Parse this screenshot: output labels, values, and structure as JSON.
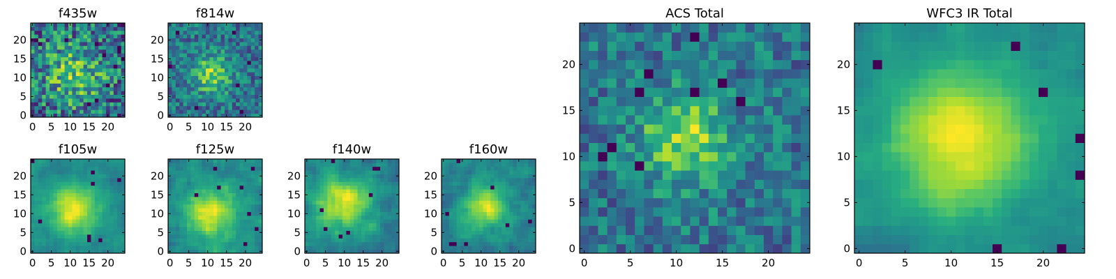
{
  "figure": {
    "background": "#ffffff"
  },
  "chart_data": [
    {
      "type": "heatmap",
      "title": "f435w",
      "xticks": [
        "0",
        "5",
        "10",
        "15",
        "20"
      ],
      "yticks": [
        "0",
        "5",
        "10",
        "15",
        "20"
      ],
      "xlim": [
        0,
        25
      ],
      "ylim": [
        0,
        25
      ],
      "colormap": "viridis",
      "pattern": "noisy",
      "seed": 11,
      "center": [
        11,
        11
      ],
      "sigma": 7,
      "noise": 0.55
    },
    {
      "type": "heatmap",
      "title": "f814w",
      "xticks": [
        "0",
        "5",
        "10",
        "15",
        "20"
      ],
      "yticks": [
        "0",
        "5",
        "10",
        "15",
        "20"
      ],
      "xlim": [
        0,
        25
      ],
      "ylim": [
        0,
        25
      ],
      "colormap": "viridis",
      "pattern": "source",
      "seed": 23,
      "center": [
        11,
        11
      ],
      "sigma": 3.5,
      "noise": 0.3
    },
    {
      "type": "heatmap",
      "title": "f105w",
      "xticks": [
        "0",
        "5",
        "10",
        "15",
        "20"
      ],
      "yticks": [
        "0",
        "5",
        "10",
        "15",
        "20"
      ],
      "xlim": [
        0,
        25
      ],
      "ylim": [
        0,
        25
      ],
      "colormap": "viridis",
      "pattern": "smooth-source",
      "seed": 37,
      "center": [
        11,
        11
      ],
      "sigma": 4.5,
      "noise": 0.22
    },
    {
      "type": "heatmap",
      "title": "f125w",
      "xticks": [
        "0",
        "5",
        "10",
        "15",
        "20"
      ],
      "yticks": [
        "0",
        "5",
        "10",
        "15",
        "20"
      ],
      "xlim": [
        0,
        25
      ],
      "ylim": [
        0,
        25
      ],
      "colormap": "viridis",
      "pattern": "smooth-source",
      "seed": 41,
      "center": [
        11,
        10
      ],
      "sigma": 5,
      "noise": 0.3
    },
    {
      "type": "heatmap",
      "title": "f140w",
      "xticks": [
        "0",
        "5",
        "10",
        "15",
        "20"
      ],
      "yticks": [
        "0",
        "5",
        "10",
        "15",
        "20"
      ],
      "xlim": [
        0,
        25
      ],
      "ylim": [
        0,
        25
      ],
      "colormap": "viridis",
      "pattern": "smooth-source",
      "seed": 53,
      "center": [
        10,
        13
      ],
      "sigma": 5,
      "noise": 0.3
    },
    {
      "type": "heatmap",
      "title": "f160w",
      "xticks": [
        "0",
        "5",
        "10",
        "15",
        "20"
      ],
      "yticks": [
        "0",
        "5",
        "10",
        "15",
        "20"
      ],
      "xlim": [
        0,
        25
      ],
      "ylim": [
        0,
        25
      ],
      "colormap": "viridis",
      "pattern": "smooth-source",
      "seed": 67,
      "center": [
        11,
        12
      ],
      "sigma": 4,
      "noise": 0.3
    },
    {
      "type": "heatmap",
      "title": "ACS Total",
      "xticks": [
        "0",
        "5",
        "10",
        "15",
        "20"
      ],
      "yticks": [
        "0",
        "5",
        "10",
        "15",
        "20"
      ],
      "xlim": [
        0,
        25
      ],
      "ylim": [
        0,
        25
      ],
      "colormap": "viridis",
      "pattern": "source",
      "seed": 79,
      "center": [
        11,
        12
      ],
      "sigma": 3.5,
      "noise": 0.28
    },
    {
      "type": "heatmap",
      "title": "WFC3 IR Total",
      "xticks": [
        "0",
        "5",
        "10",
        "15",
        "20"
      ],
      "yticks": [
        "0",
        "5",
        "10",
        "15",
        "20"
      ],
      "xlim": [
        0,
        25
      ],
      "ylim": [
        0,
        25
      ],
      "colormap": "viridis",
      "pattern": "smooth-source",
      "seed": 97,
      "center": [
        11,
        12
      ],
      "sigma": 5.5,
      "noise": 0.16
    }
  ]
}
